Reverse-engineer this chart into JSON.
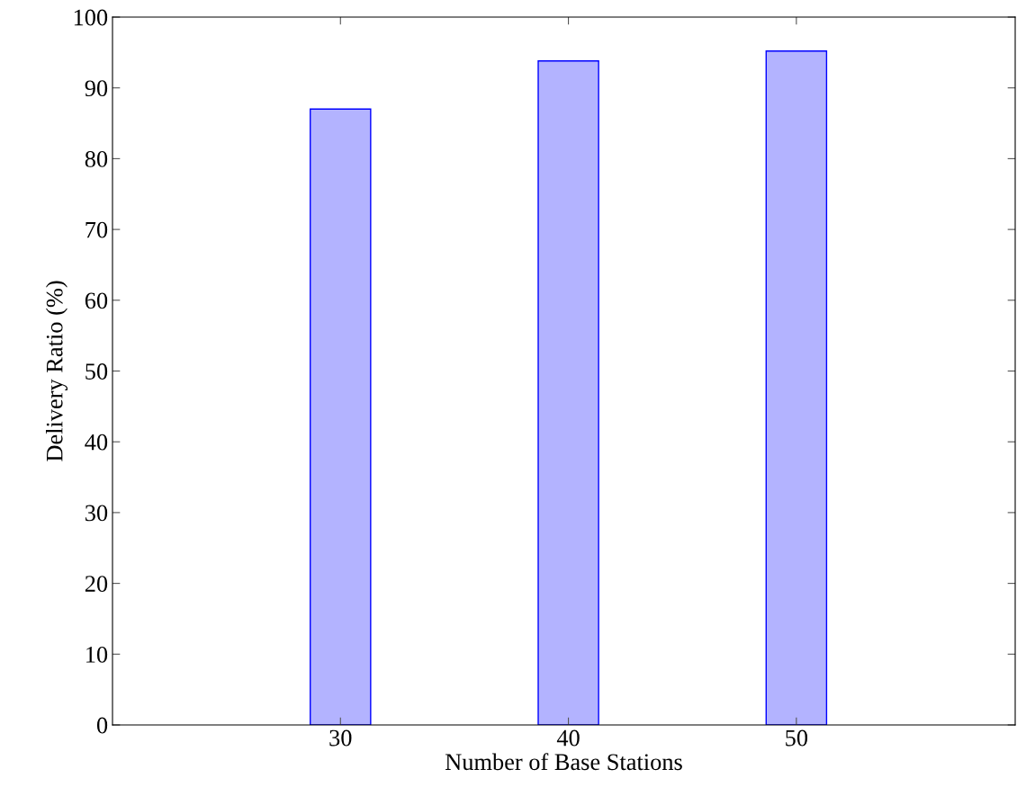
{
  "chart_data": {
    "type": "bar",
    "xlabel": "Number of Base Stations",
    "ylabel": "Delivery Ratio (%)",
    "x": [
      30,
      40,
      50
    ],
    "series": [
      {
        "color": "#b3b3ff",
        "values": [
          87.0,
          93.8,
          95.2
        ]
      }
    ],
    "xlim": [
      20,
      59.6
    ],
    "xticks": [
      30,
      40,
      50
    ],
    "ylim": [
      0,
      100
    ],
    "yticks": [
      0,
      10,
      20,
      30,
      40,
      50,
      60,
      70,
      80,
      90,
      100
    ]
  }
}
